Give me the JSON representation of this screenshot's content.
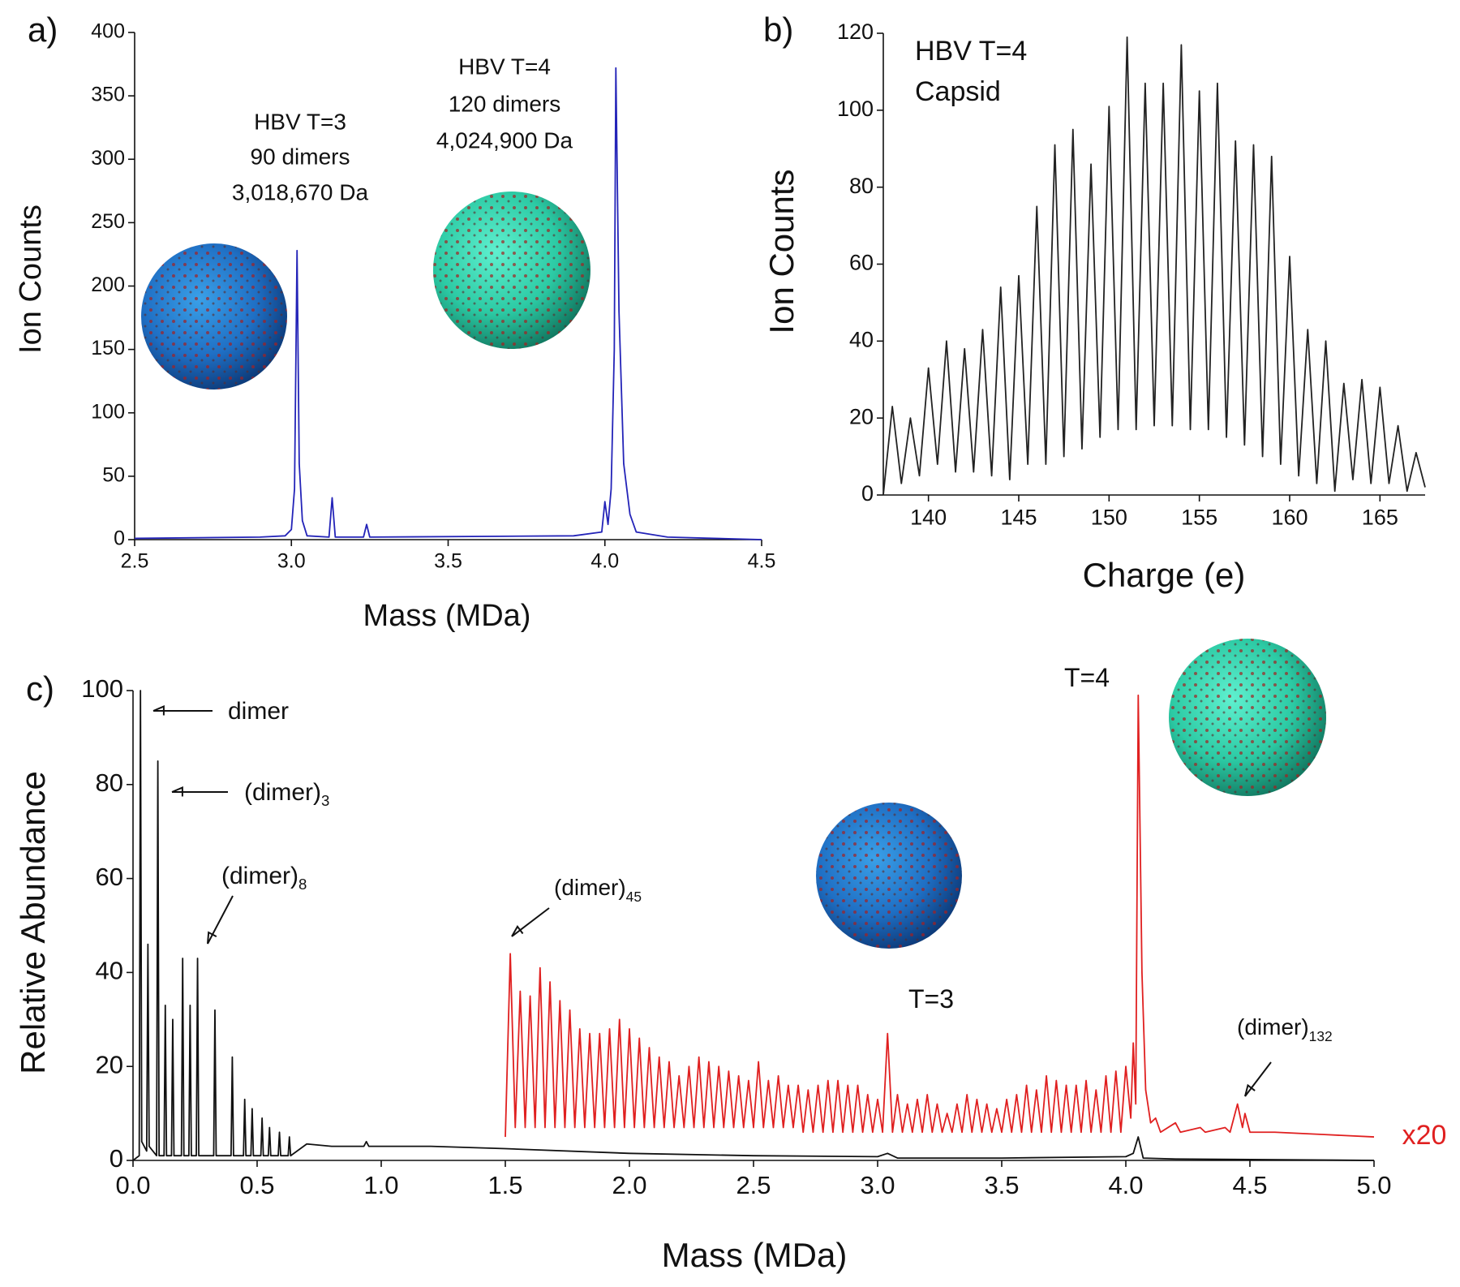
{
  "chart_data": [
    {
      "type": "line",
      "panel": "a)",
      "xlabel": "Mass (MDa)",
      "ylabel": "Ion Counts",
      "xlim": [
        2.5,
        4.5
      ],
      "xticks": [
        2.5,
        {
          "value": 3,
          "label": "3.0"
        },
        3.5,
        {
          "value": 4,
          "label": "4.0"
        },
        4.5
      ],
      "ylim": [
        0,
        400
      ],
      "yticks": [
        0,
        50,
        100,
        150,
        200,
        250,
        300,
        350,
        400
      ],
      "annotations": [
        [
          "HBV T=3",
          "90 dimers",
          "3,018,670 Da"
        ],
        [
          "HBV T=4",
          "120 dimers",
          "4,024,900 Da"
        ]
      ],
      "series": [
        {
          "color": "#2424b8",
          "x": [
            2.5,
            2.9,
            2.98,
            3.0,
            3.01,
            3.018,
            3.025,
            3.035,
            3.05,
            3.12,
            3.13,
            3.14,
            3.23,
            3.24,
            3.25,
            3.9,
            3.99,
            4.0,
            4.01,
            4.02,
            4.03,
            4.035,
            4.045,
            4.06,
            4.08,
            4.1,
            4.2,
            4.5
          ],
          "values": [
            1,
            2,
            3,
            8,
            40,
            228,
            60,
            15,
            3,
            2,
            33,
            2,
            2,
            12,
            2,
            3,
            6,
            30,
            12,
            40,
            150,
            372,
            180,
            60,
            20,
            6,
            2,
            0
          ]
        }
      ]
    },
    {
      "type": "line",
      "panel": "b)",
      "xlabel": "Charge (e)",
      "ylabel": "Ion Counts",
      "xlim": [
        137.5,
        167.5
      ],
      "xticks": [
        140,
        145,
        150,
        155,
        160,
        165
      ],
      "ylim": [
        0,
        120
      ],
      "yticks": [
        0,
        20,
        40,
        60,
        80,
        100,
        120
      ],
      "annotations": [
        [
          "HBV T=4",
          "Capsid"
        ]
      ],
      "series": [
        {
          "color": "#222222",
          "x": [
            137.5,
            138,
            138.5,
            139,
            139.5,
            140,
            140.5,
            141,
            141.5,
            142,
            142.5,
            143,
            143.5,
            144,
            144.5,
            145,
            145.5,
            146,
            146.5,
            147,
            147.5,
            148,
            148.5,
            149,
            149.5,
            150,
            150.5,
            151,
            151.5,
            152,
            152.5,
            153,
            153.5,
            154,
            154.5,
            155,
            155.5,
            156,
            156.5,
            157,
            157.5,
            158,
            158.5,
            159,
            159.5,
            160,
            160.5,
            161,
            161.5,
            162,
            162.5,
            163,
            163.5,
            164,
            164.5,
            165,
            165.5,
            166,
            166.5,
            167,
            167.5
          ],
          "values": [
            0,
            23,
            3,
            20,
            5,
            33,
            8,
            40,
            6,
            38,
            6,
            43,
            5,
            54,
            4,
            57,
            8,
            75,
            8,
            91,
            10,
            95,
            12,
            86,
            15,
            101,
            17,
            119,
            17,
            107,
            18,
            107,
            18,
            117,
            17,
            105,
            17,
            107,
            15,
            92,
            13,
            91,
            10,
            88,
            8,
            62,
            5,
            43,
            3,
            40,
            1,
            29,
            4,
            30,
            3,
            28,
            3,
            18,
            1,
            11,
            2
          ]
        }
      ]
    },
    {
      "type": "line",
      "panel": "c)",
      "xlabel": "Mass (MDa)",
      "ylabel": "Relative Abundance",
      "xlim": [
        0,
        5
      ],
      "xticks": [
        {
          "value": 0,
          "label": "0.0"
        },
        0.5,
        {
          "value": 1,
          "label": "1.0"
        },
        1.5,
        {
          "value": 2,
          "label": "2.0"
        },
        2.5,
        {
          "value": 3,
          "label": "3.0"
        },
        3.5,
        {
          "value": 4,
          "label": "4.0"
        },
        4.5,
        {
          "value": 5,
          "label": "5.0"
        }
      ],
      "ylim": [
        0,
        100
      ],
      "yticks": [
        0,
        20,
        40,
        60,
        80,
        100
      ],
      "annotations": [
        {
          "text": "dimer"
        },
        {
          "text": "(dimer)",
          "subscript": "3"
        },
        {
          "text": "(dimer)",
          "subscript": "8"
        },
        {
          "text": "(dimer)",
          "subscript": "45"
        },
        {
          "text": "T=3"
        },
        {
          "text": "T=4"
        },
        {
          "text": "(dimer)",
          "subscript": "132"
        }
      ],
      "series": [
        {
          "color": "#111111",
          "x": [
            0,
            0.025,
            0.03,
            0.035,
            0.055,
            0.06,
            0.065,
            0.095,
            0.1,
            0.105,
            0.125,
            0.13,
            0.135,
            0.155,
            0.16,
            0.165,
            0.195,
            0.2,
            0.205,
            0.225,
            0.23,
            0.235,
            0.255,
            0.26,
            0.265,
            0.325,
            0.33,
            0.335,
            0.395,
            0.4,
            0.405,
            0.445,
            0.45,
            0.455,
            0.475,
            0.48,
            0.485,
            0.515,
            0.52,
            0.525,
            0.545,
            0.55,
            0.555,
            0.585,
            0.59,
            0.595,
            0.625,
            0.63,
            0.635,
            0.7,
            0.8,
            0.93,
            0.94,
            0.95,
            1.2,
            1.5,
            2.0,
            2.5,
            3.0,
            3.04,
            3.08,
            3.5,
            4.0,
            4.03,
            4.05,
            4.07,
            4.2,
            5.0
          ],
          "values": [
            0,
            1,
            100,
            4,
            2,
            46,
            3,
            1,
            85,
            1,
            1,
            33,
            1,
            1,
            30,
            1,
            1,
            43,
            1,
            1,
            33,
            1,
            1,
            43,
            1,
            1,
            32,
            1,
            1,
            22,
            1,
            1,
            13,
            1,
            1,
            11,
            1,
            1,
            9,
            1,
            1,
            7,
            1,
            1,
            6,
            1,
            1,
            5,
            1,
            3.5,
            3,
            3,
            4,
            3,
            3,
            2.5,
            1.5,
            1,
            0.8,
            1.5,
            0.5,
            0.5,
            0.8,
            1.5,
            5,
            0.5,
            0.3,
            0
          ]
        },
        {
          "name": "x20",
          "color": "#e02020",
          "x": [
            1.5,
            1.52,
            1.54,
            1.56,
            1.58,
            1.6,
            1.62,
            1.64,
            1.66,
            1.68,
            1.7,
            1.72,
            1.74,
            1.76,
            1.78,
            1.8,
            1.82,
            1.84,
            1.86,
            1.88,
            1.9,
            1.92,
            1.94,
            1.96,
            1.98,
            2.0,
            2.02,
            2.04,
            2.06,
            2.08,
            2.1,
            2.12,
            2.14,
            2.16,
            2.18,
            2.2,
            2.22,
            2.24,
            2.26,
            2.28,
            2.3,
            2.32,
            2.34,
            2.36,
            2.38,
            2.4,
            2.42,
            2.44,
            2.46,
            2.48,
            2.5,
            2.52,
            2.54,
            2.56,
            2.58,
            2.6,
            2.62,
            2.64,
            2.66,
            2.68,
            2.7,
            2.72,
            2.74,
            2.76,
            2.78,
            2.8,
            2.82,
            2.84,
            2.86,
            2.88,
            2.9,
            2.92,
            2.94,
            2.96,
            2.98,
            3.0,
            3.02,
            3.04,
            3.06,
            3.08,
            3.1,
            3.12,
            3.14,
            3.16,
            3.18,
            3.2,
            3.22,
            3.24,
            3.26,
            3.28,
            3.3,
            3.32,
            3.34,
            3.36,
            3.38,
            3.4,
            3.42,
            3.44,
            3.46,
            3.48,
            3.5,
            3.52,
            3.54,
            3.56,
            3.58,
            3.6,
            3.62,
            3.64,
            3.66,
            3.68,
            3.7,
            3.72,
            3.74,
            3.76,
            3.78,
            3.8,
            3.82,
            3.84,
            3.86,
            3.88,
            3.9,
            3.92,
            3.94,
            3.96,
            3.98,
            4.0,
            4.02,
            4.03,
            4.04,
            4.05,
            4.065,
            4.08,
            4.1,
            4.12,
            4.14,
            4.2,
            4.22,
            4.3,
            4.32,
            4.4,
            4.42,
            4.45,
            4.47,
            4.48,
            4.5,
            4.6,
            4.8,
            5.0
          ],
          "values": [
            5,
            44,
            7,
            36,
            7,
            35,
            7,
            41,
            7,
            38,
            7,
            34,
            7,
            32,
            7,
            28,
            7,
            27,
            7,
            27,
            7,
            28,
            7,
            30,
            7,
            28,
            7,
            26,
            7,
            24,
            7,
            22,
            7,
            21,
            7,
            18,
            7,
            20,
            7,
            22,
            7,
            21,
            7,
            20,
            7,
            19,
            7,
            18,
            7,
            17,
            7,
            21,
            7,
            17,
            7,
            18,
            7,
            16,
            7,
            16,
            6,
            15,
            6,
            16,
            6,
            17,
            6,
            17,
            6,
            16,
            6,
            16,
            6,
            14,
            6,
            13,
            6,
            27,
            6,
            14,
            6,
            12,
            6,
            13,
            6,
            14,
            6,
            12,
            6,
            10,
            6,
            12,
            6,
            14,
            6,
            13,
            6,
            12,
            6,
            11,
            6,
            13,
            6,
            14,
            6,
            16,
            6,
            15,
            6,
            18,
            6,
            17,
            6,
            16,
            6,
            16,
            6,
            17,
            6,
            15,
            6,
            18,
            6,
            19,
            6,
            20,
            9,
            25,
            12,
            99,
            40,
            15,
            8,
            9,
            6,
            8,
            6,
            7,
            6,
            7,
            6,
            12,
            7,
            10,
            6,
            6,
            5.5,
            5
          ]
        }
      ]
    }
  ]
}
